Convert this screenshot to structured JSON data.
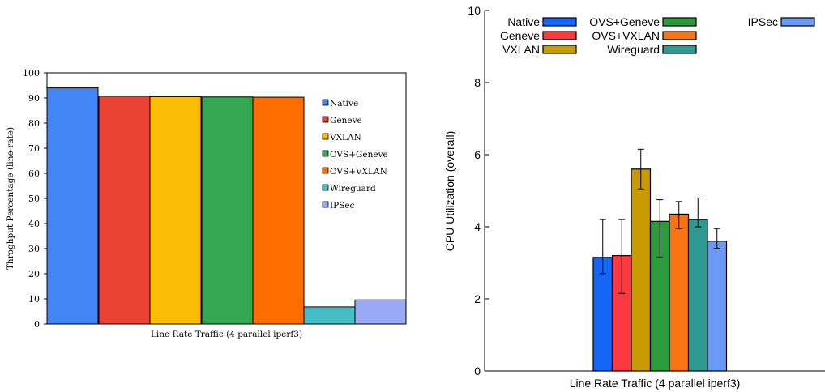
{
  "chart_data": [
    {
      "type": "bar",
      "xlabel": "Line Rate Traffic (4 parallel iperf3)",
      "ylabel": "Throghput Percentage (line-rate)",
      "ylim": [
        0,
        100
      ],
      "yticks": [
        "0",
        "10",
        "20",
        "30",
        "40",
        "50",
        "60",
        "70",
        "80",
        "90",
        "100"
      ],
      "grid": false,
      "legend_position": "right",
      "series": [
        {
          "name": "Native",
          "value": 94,
          "color": "#4285f4"
        },
        {
          "name": "Geneve",
          "value": 90.7,
          "color": "#ea4335"
        },
        {
          "name": "VXLAN",
          "value": 90.5,
          "color": "#fbbc04"
        },
        {
          "name": "OVS+Geneve",
          "value": 90.4,
          "color": "#34a853"
        },
        {
          "name": "OVS+VXLAN",
          "value": 90.3,
          "color": "#ff6d01"
        },
        {
          "name": "Wireguard",
          "value": 6.8,
          "color": "#46bdc6"
        },
        {
          "name": "IPSec",
          "value": 9.6,
          "color": "#9aa9f5"
        }
      ]
    },
    {
      "type": "bar",
      "xlabel": "Line Rate Traffic (4 parallel iperf3)",
      "ylabel": "CPU Utilization (overall)",
      "ylim": [
        0,
        10
      ],
      "yticks": [
        "0",
        "2",
        "4",
        "6",
        "8",
        "10"
      ],
      "grid": false,
      "legend_position": "top",
      "error_bars": true,
      "series": [
        {
          "name": "Native",
          "value": 3.15,
          "err_low": 2.7,
          "err_high": 4.2,
          "color": "#1666f5"
        },
        {
          "name": "Geneve",
          "value": 3.2,
          "err_low": 2.15,
          "err_high": 4.2,
          "color": "#fb3a3f"
        },
        {
          "name": "VXLAN",
          "value": 5.6,
          "err_low": 5.05,
          "err_high": 6.15,
          "color": "#c99a00"
        },
        {
          "name": "OVS+Geneve",
          "value": 4.15,
          "err_low": 3.15,
          "err_high": 4.75,
          "color": "#2e9a3e"
        },
        {
          "name": "OVS+VXLAN",
          "value": 4.35,
          "err_low": 3.95,
          "err_high": 4.7,
          "color": "#f97312"
        },
        {
          "name": "Wireguard",
          "value": 4.2,
          "err_low": 4.0,
          "err_high": 4.8,
          "color": "#2f9890"
        },
        {
          "name": "IPSec",
          "value": 3.6,
          "err_low": 3.4,
          "err_high": 3.95,
          "color": "#6b9af5"
        }
      ]
    }
  ]
}
